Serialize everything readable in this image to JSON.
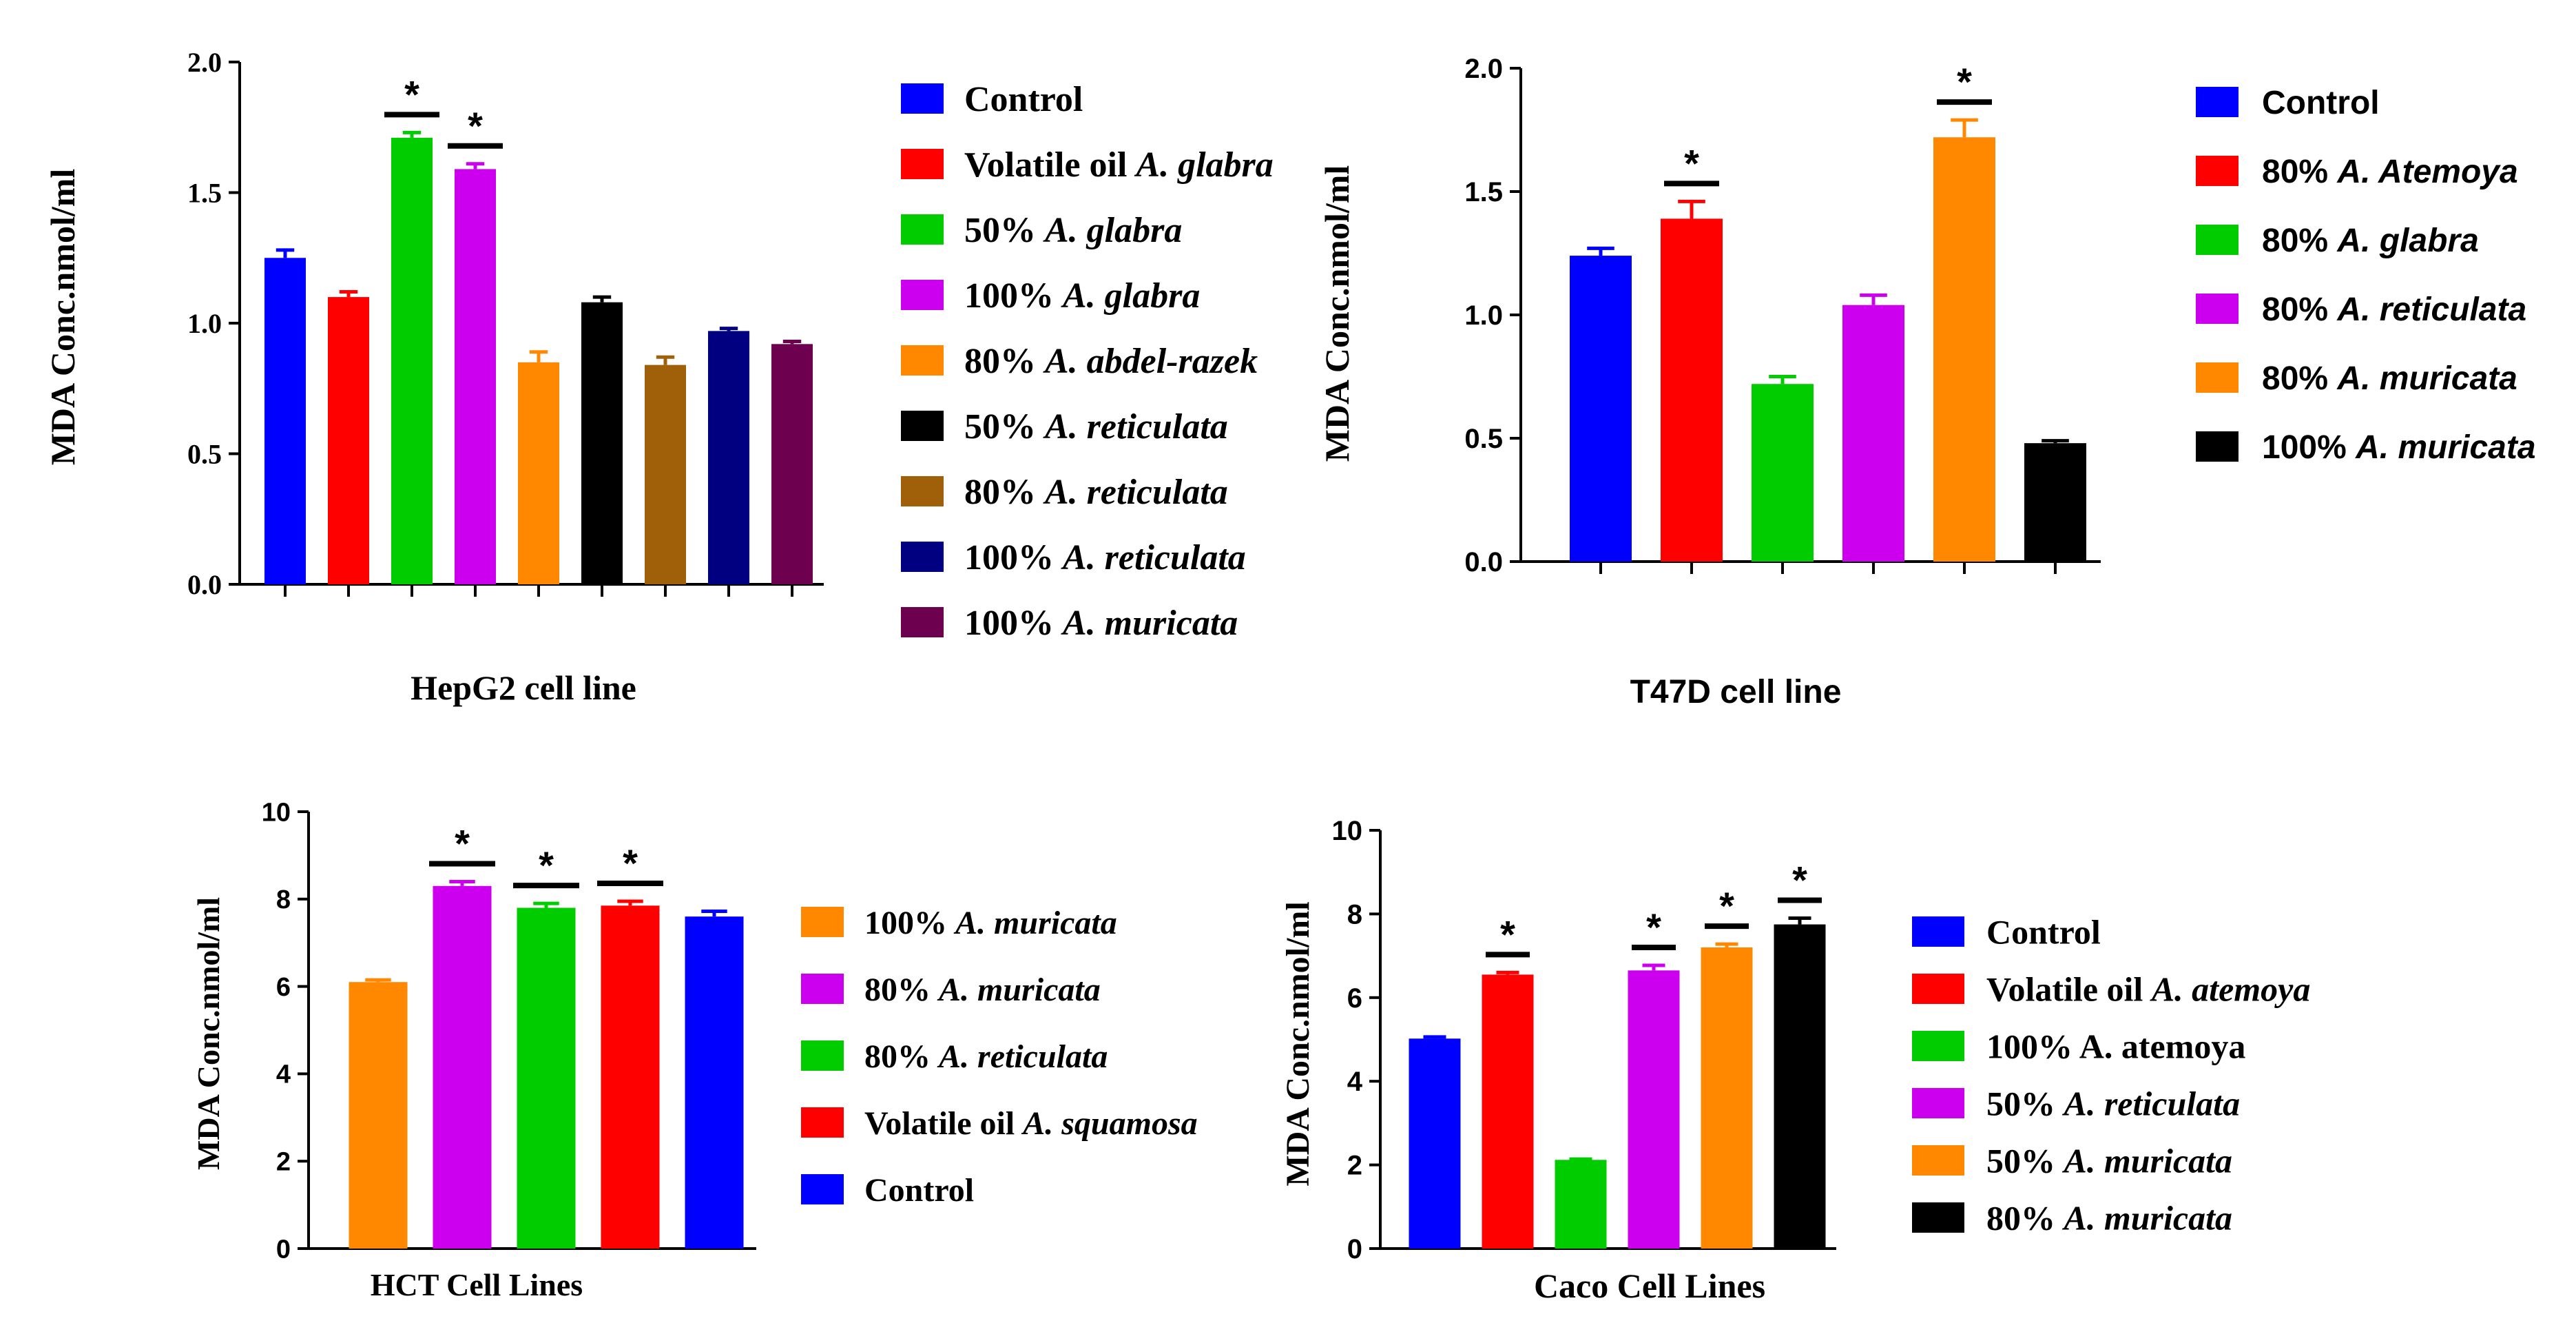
{
  "chart_data": [
    {
      "type": "bar",
      "title": "",
      "xlabel": "HepG2 cell line",
      "ylabel": "MDA Conc.nmol/ml",
      "ylim": [
        0,
        2.0
      ],
      "yticks": [
        "0.0",
        "0.5",
        "1.0",
        "1.5",
        "2.0"
      ],
      "categories": [
        "Control",
        "Volatile oil A. glabra",
        "50% A. glabra",
        "100% A. glabra",
        "80% A. abdel-razek",
        "50% A. reticulata",
        "80% A. reticulata",
        "100% A. reticulata",
        "100% A. muricata"
      ],
      "legend": [
        {
          "prefix": "Control",
          "species": ""
        },
        {
          "prefix": "Volatile oil ",
          "species": "A. glabra"
        },
        {
          "prefix": "50% ",
          "species": "A. glabra"
        },
        {
          "prefix": "100% ",
          "species": "A. glabra"
        },
        {
          "prefix": "80% ",
          "species": "A. abdel-razek"
        },
        {
          "prefix": "50% ",
          "species": "A. reticulata"
        },
        {
          "prefix": "80% ",
          "species": "A. reticulata"
        },
        {
          "prefix": "100% ",
          "species": "A. reticulata"
        },
        {
          "prefix": "100% ",
          "species": "A. muricata"
        }
      ],
      "values": [
        1.25,
        1.1,
        1.71,
        1.59,
        0.85,
        1.08,
        0.84,
        0.97,
        0.92
      ],
      "errors": [
        0.03,
        0.02,
        0.02,
        0.02,
        0.04,
        0.02,
        0.03,
        0.01,
        0.01
      ],
      "colors": [
        "#0000ff",
        "#ff0000",
        "#00cc00",
        "#cc00ee",
        "#ff8800",
        "#000000",
        "#a0600a",
        "#000080",
        "#6e0050"
      ],
      "significant": [
        false,
        false,
        true,
        true,
        false,
        false,
        false,
        false,
        false
      ],
      "sig_mark": "*"
    },
    {
      "type": "bar",
      "title": "",
      "xlabel": "T47D cell line",
      "ylabel": "MDA Conc.nmol/ml",
      "ylim": [
        0,
        2.0
      ],
      "yticks": [
        "0.0",
        "0.5",
        "1.0",
        "1.5",
        "2.0"
      ],
      "categories": [
        "Control",
        "80% A. Atemoya",
        "80% A. glabra",
        "80% A. reticulata",
        "80% A. muricata",
        "100% A. muricata"
      ],
      "legend": [
        {
          "prefix": "Control",
          "species": ""
        },
        {
          "prefix": "80%  ",
          "species": "A. Atemoya"
        },
        {
          "prefix": "80% ",
          "species": "A. glabra"
        },
        {
          "prefix": "80% ",
          "species": "A. reticulata"
        },
        {
          "prefix": "80% ",
          "species": "A. muricata"
        },
        {
          "prefix": "100% ",
          "species": "A. muricata"
        }
      ],
      "values": [
        1.24,
        1.39,
        0.72,
        1.04,
        1.72,
        0.48
      ],
      "errors": [
        0.03,
        0.07,
        0.03,
        0.04,
        0.07,
        0.01
      ],
      "colors": [
        "#0000ff",
        "#ff0000",
        "#00cc00",
        "#cc00ee",
        "#ff8800",
        "#000000"
      ],
      "significant": [
        false,
        true,
        false,
        false,
        true,
        false
      ],
      "sig_mark": "*"
    },
    {
      "type": "bar",
      "title": "",
      "xlabel": "HCT Cell Lines",
      "ylabel": "MDA Conc.nmol/ml",
      "ylim": [
        0,
        10
      ],
      "yticks": [
        "0",
        "2",
        "4",
        "6",
        "8",
        "10"
      ],
      "categories": [
        "100% A. muricata",
        "80% A. muricata",
        "80% A. reticulata",
        "Volatile oil A. squamosa",
        "Control"
      ],
      "legend": [
        {
          "prefix": "100% ",
          "species": "A. muricata"
        },
        {
          "prefix": "80% ",
          "species": "A. muricata"
        },
        {
          "prefix": "80% ",
          "species": "A. reticulata"
        },
        {
          "prefix": "Volatile oil ",
          "species": "A. squamosa"
        },
        {
          "prefix": "Control",
          "species": ""
        }
      ],
      "values": [
        6.1,
        8.3,
        7.8,
        7.85,
        7.6
      ],
      "errors": [
        0.05,
        0.1,
        0.1,
        0.1,
        0.12
      ],
      "colors": [
        "#ff8800",
        "#cc00ee",
        "#00cc00",
        "#ff0000",
        "#0000ff"
      ],
      "significant": [
        false,
        true,
        true,
        true,
        false
      ],
      "sig_mark": "*"
    },
    {
      "type": "bar",
      "title": "",
      "xlabel": "Caco Cell Lines",
      "ylabel": "MDA Conc.nmol/ml",
      "ylim": [
        0,
        10
      ],
      "yticks": [
        "0",
        "2",
        "4",
        "6",
        "8",
        "10"
      ],
      "categories": [
        "Control",
        "Volatile oil A. atemoya",
        "100% A. atemoya",
        "50% A. reticulata",
        "50% A. muricata",
        "80% A. muricata"
      ],
      "legend": [
        {
          "prefix": "Control",
          "species": ""
        },
        {
          "prefix": "Volatile oil ",
          "species": "A. atemoya"
        },
        {
          "prefix": "100% A. atemoya",
          "species": ""
        },
        {
          "prefix": "50% ",
          "species": "A. reticulata"
        },
        {
          "prefix": "50% ",
          "species": "A. muricata"
        },
        {
          "prefix": "80% ",
          "species": "A. muricata"
        }
      ],
      "values": [
        5.02,
        6.55,
        2.12,
        6.65,
        7.2,
        7.75
      ],
      "errors": [
        0.04,
        0.05,
        0.02,
        0.12,
        0.08,
        0.15
      ],
      "colors": [
        "#0000ff",
        "#ff0000",
        "#00cc00",
        "#cc00ee",
        "#ff8800",
        "#000000"
      ],
      "significant": [
        false,
        true,
        false,
        true,
        true,
        true
      ],
      "sig_mark": "*"
    }
  ]
}
